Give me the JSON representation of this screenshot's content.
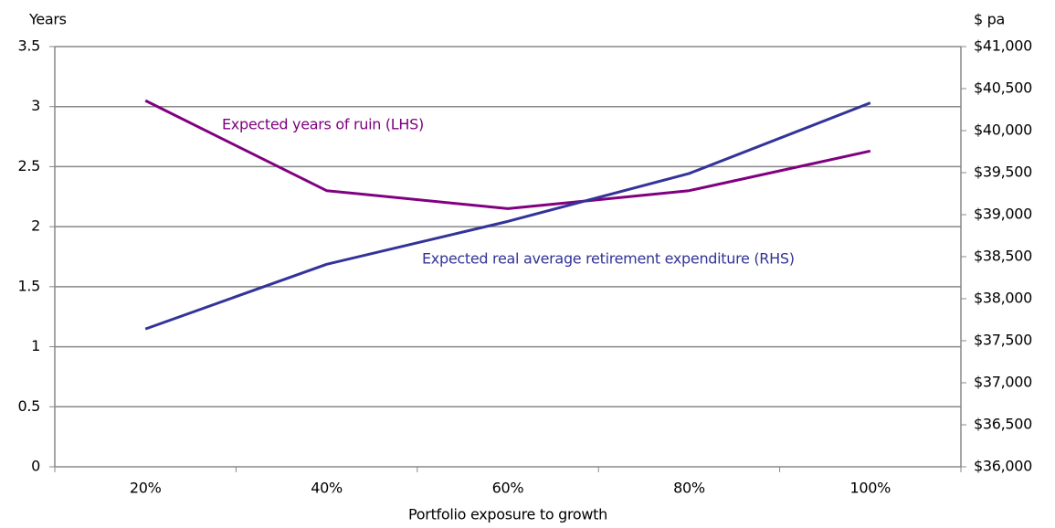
{
  "chart_data": {
    "type": "line",
    "x_label": "Portfolio exposure to growth",
    "y_label": "Years",
    "y2_label": "$ pa",
    "categories": [
      "20%",
      "40%",
      "60%",
      "80%",
      "100%"
    ],
    "series": [
      {
        "name": "Expected years of ruin (LHS)",
        "color": "#800080",
        "values": [
          3.05,
          2.3,
          2.15,
          2.3,
          2.63
        ]
      },
      {
        "name": "Expected real average retirement expenditure (RHS)",
        "color": "#333399",
        "axis": "y2",
        "values": [
          37640,
          38410,
          38920,
          39490,
          40330
        ]
      }
    ],
    "ylim": [
      0,
      3.5
    ],
    "yticks": [
      0,
      0.5,
      1,
      1.5,
      2,
      2.5,
      3,
      3.5
    ],
    "y2lim": [
      36000,
      41000
    ],
    "y2ticks": [
      {
        "value": 36000,
        "label": "$36,000"
      },
      {
        "value": 36500,
        "label": "$36,500"
      },
      {
        "value": 37000,
        "label": "$37,000"
      },
      {
        "value": 37500,
        "label": "$37,500"
      },
      {
        "value": 38000,
        "label": "$38,000"
      },
      {
        "value": 38500,
        "label": "$38,500"
      },
      {
        "value": 39000,
        "label": "$39,000"
      },
      {
        "value": 39500,
        "label": "$39,500"
      },
      {
        "value": 40000,
        "label": "$40,000"
      },
      {
        "value": 40500,
        "label": "$40,500"
      },
      {
        "value": 41000,
        "label": "$41,000"
      }
    ],
    "grid": true
  }
}
